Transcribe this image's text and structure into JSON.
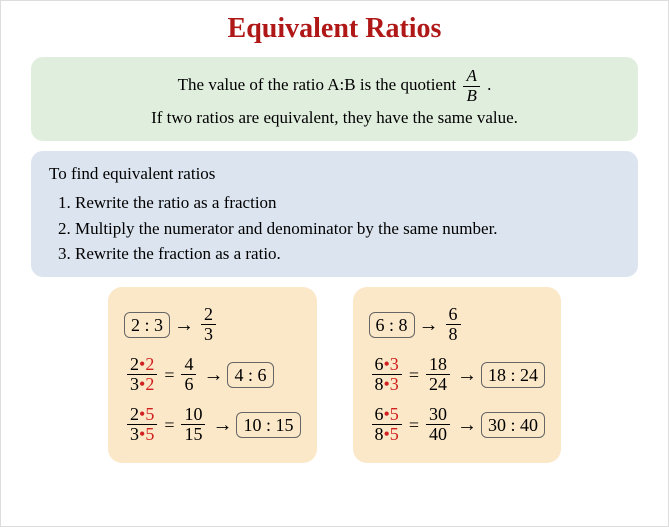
{
  "colors": {
    "title": "#b01818",
    "green_bg": "#e0eedd",
    "blue_bg": "#dbe4ef",
    "peach_bg": "#fbe8c9",
    "multiplier": "#d02020",
    "text": "#000000"
  },
  "title": "Equivalent Ratios",
  "definition": {
    "line1_pre": "The value of the ratio A:B is the quotient ",
    "frac_num": "A",
    "frac_den": "B",
    "line1_post": " .",
    "line2": "If two ratios are equivalent, they have the same value."
  },
  "steps": {
    "intro": "To find equivalent ratios",
    "items": [
      "Rewrite the ratio as a fraction",
      "Multiply the numerator and denominator by the same number.",
      "Rewrite the fraction as a ratio."
    ]
  },
  "examples": [
    {
      "start_ratio": "2 : 3",
      "start_num": "2",
      "start_den": "3",
      "rows": [
        {
          "a": "2",
          "m": "2",
          "b": "3",
          "rn": "4",
          "rd": "6",
          "ratio": "4 : 6"
        },
        {
          "a": "2",
          "m": "5",
          "b": "3",
          "rn": "10",
          "rd": "15",
          "ratio": "10 : 15"
        }
      ]
    },
    {
      "start_ratio": "6 : 8",
      "start_num": "6",
      "start_den": "8",
      "rows": [
        {
          "a": "6",
          "m": "3",
          "b": "8",
          "rn": "18",
          "rd": "24",
          "ratio": "18 : 24"
        },
        {
          "a": "6",
          "m": "5",
          "b": "8",
          "rn": "30",
          "rd": "40",
          "ratio": "30 : 40"
        }
      ]
    }
  ]
}
